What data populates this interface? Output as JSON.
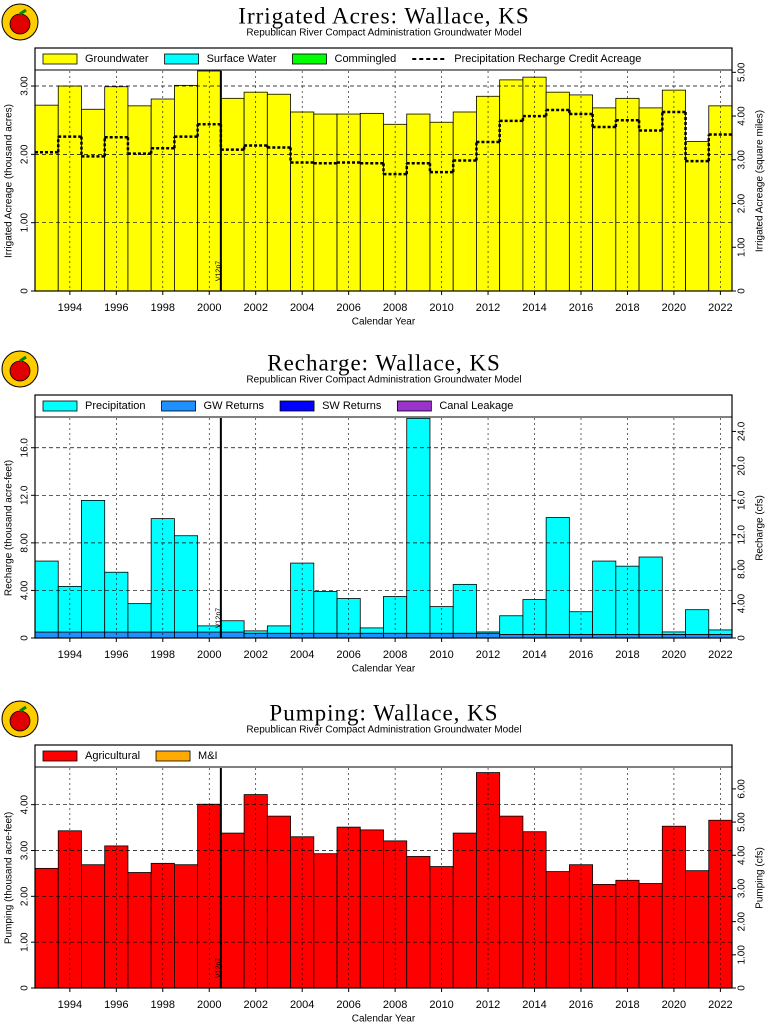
{
  "chart_data": [
    {
      "type": "bar",
      "stacked": true,
      "title": "Irrigated Acres: Wallace, KS",
      "subtitle": "Republican River Compact Administration Groundwater Model",
      "x_label": "Calendar Year",
      "y_label": "Irrigated Acreage (thousand acres)",
      "y2_label": "Irrigated Acreage (square miles)",
      "x": [
        1993,
        1994,
        1995,
        1996,
        1997,
        1998,
        1999,
        2000,
        2001,
        2002,
        2003,
        2004,
        2005,
        2006,
        2007,
        2008,
        2009,
        2010,
        2011,
        2012,
        2013,
        2014,
        2015,
        2016,
        2017,
        2018,
        2019,
        2020,
        2021,
        2022
      ],
      "xlim": [
        1992.5,
        2022.5
      ],
      "xticks": [
        1994,
        1996,
        1998,
        2000,
        2002,
        2004,
        2006,
        2008,
        2010,
        2012,
        2014,
        2016,
        2018,
        2020,
        2022
      ],
      "ylim": [
        0,
        3.22
      ],
      "yticks": [
        0,
        {
          "value": 1,
          "label": "1.00"
        },
        {
          "value": 2,
          "label": "2.00"
        },
        {
          "value": 3,
          "label": "3.00"
        }
      ],
      "y2lim": [
        0,
        5.03
      ],
      "y2ticks": [
        0,
        {
          "value": 1,
          "label": "1.00"
        },
        {
          "value": 2,
          "label": "2.00"
        },
        {
          "value": 3,
          "label": "3.00"
        },
        {
          "value": 4,
          "label": "4.00"
        },
        {
          "value": 5,
          "label": "5.00"
        }
      ],
      "grid": true,
      "series": [
        {
          "name": "Groundwater",
          "color": "#ffff00",
          "values": [
            2.72,
            3.0,
            2.66,
            2.99,
            2.71,
            2.81,
            3.01,
            3.22,
            2.82,
            2.91,
            2.88,
            2.62,
            2.59,
            2.59,
            2.6,
            2.44,
            2.59,
            2.47,
            2.62,
            2.85,
            3.09,
            3.13,
            2.91,
            2.87,
            2.68,
            2.82,
            2.68,
            2.94,
            2.19,
            2.71
          ]
        },
        {
          "name": "Surface Water",
          "color": "#00ffff",
          "values": [
            0,
            0,
            0,
            0,
            0,
            0,
            0,
            0,
            0,
            0,
            0,
            0,
            0,
            0,
            0,
            0,
            0,
            0,
            0,
            0,
            0,
            0,
            0,
            0,
            0,
            0,
            0,
            0,
            0,
            0
          ]
        },
        {
          "name": "Commingled",
          "color": "#00ff00",
          "values": [
            0,
            0,
            0,
            0,
            0,
            0,
            0,
            0,
            0,
            0,
            0,
            0,
            0,
            0,
            0,
            0,
            0,
            0,
            0,
            0,
            0,
            0,
            0,
            0,
            0,
            0,
            0,
            0,
            0,
            0
          ]
        },
        {
          "name": "Precipitation Recharge Credit Acreage",
          "type": "line",
          "color": "#000000",
          "values": [
            2.03,
            2.26,
            1.97,
            2.25,
            2.01,
            2.09,
            2.26,
            2.44,
            2.07,
            2.13,
            2.1,
            1.88,
            1.87,
            1.88,
            1.87,
            1.71,
            1.87,
            1.74,
            1.91,
            2.18,
            2.49,
            2.56,
            2.65,
            2.59,
            2.4,
            2.5,
            2.35,
            2.62,
            1.9,
            2.29
          ]
        }
      ],
      "annotations": [
        {
          "text": "V12p7",
          "x": 2000.5
        }
      ]
    },
    {
      "type": "bar",
      "stacked": true,
      "title": "Recharge: Wallace, KS",
      "subtitle": "Republican River Compact Administration Groundwater Model",
      "x_label": "Calendar Year",
      "y_label": "Recharge (thousand acre-feet)",
      "y2_label": "Recharge (cfs)",
      "x": [
        1993,
        1994,
        1995,
        1996,
        1997,
        1998,
        1999,
        2000,
        2001,
        2002,
        2003,
        2004,
        2005,
        2006,
        2007,
        2008,
        2009,
        2010,
        2011,
        2012,
        2013,
        2014,
        2015,
        2016,
        2017,
        2018,
        2019,
        2020,
        2021,
        2022
      ],
      "xlim": [
        1992.5,
        2022.5
      ],
      "xticks": [
        1994,
        1996,
        1998,
        2000,
        2002,
        2004,
        2006,
        2008,
        2010,
        2012,
        2014,
        2016,
        2018,
        2020,
        2022
      ],
      "ylim": [
        0,
        18.5
      ],
      "yticks": [
        0,
        {
          "value": 4,
          "label": "4.00"
        },
        {
          "value": 8,
          "label": "8.00"
        },
        {
          "value": 12,
          "label": "12.0"
        },
        {
          "value": 16,
          "label": "16.0"
        }
      ],
      "y2lim": [
        0,
        25.56
      ],
      "y2ticks": [
        0,
        {
          "value": 4,
          "label": "4.00"
        },
        {
          "value": 8,
          "label": "8.00"
        },
        {
          "value": 12,
          "label": "12.0"
        },
        {
          "value": 16,
          "label": "16.0"
        },
        {
          "value": 20,
          "label": "20.0"
        },
        {
          "value": 24,
          "label": "24.0"
        }
      ],
      "grid": true,
      "series": [
        {
          "name": "GW Returns",
          "color": "#1e90ff",
          "values": [
            0.5,
            0.5,
            0.5,
            0.5,
            0.5,
            0.5,
            0.5,
            0.5,
            0.5,
            0.4,
            0.4,
            0.4,
            0.4,
            0.4,
            0.4,
            0.4,
            0.4,
            0.4,
            0.4,
            0.4,
            0.3,
            0.3,
            0.3,
            0.3,
            0.3,
            0.3,
            0.3,
            0.3,
            0.3,
            0.3
          ]
        },
        {
          "name": "SW Returns",
          "color": "#0000ff",
          "values": [
            0,
            0,
            0,
            0,
            0,
            0,
            0,
            0,
            0,
            0,
            0,
            0,
            0,
            0,
            0,
            0,
            0,
            0,
            0,
            0,
            0,
            0,
            0,
            0,
            0,
            0,
            0,
            0,
            0,
            0
          ]
        },
        {
          "name": "Canal Leakage",
          "color": "#9933cc",
          "values": [
            0,
            0,
            0,
            0,
            0,
            0,
            0,
            0,
            0,
            0,
            0,
            0,
            0,
            0,
            0,
            0,
            0,
            0,
            0,
            0,
            0,
            0,
            0,
            0,
            0,
            0,
            0,
            0,
            0,
            0
          ]
        },
        {
          "name": "Precipitation",
          "color": "#00ffff",
          "values": [
            5.97,
            3.84,
            11.07,
            5.03,
            2.39,
            9.54,
            8.1,
            0.52,
            0.95,
            0.2,
            0.62,
            5.9,
            3.51,
            2.92,
            0.45,
            3.09,
            18.07,
            2.24,
            4.11,
            0.11,
            1.57,
            2.93,
            9.83,
            1.91,
            6.17,
            5.74,
            6.51,
            0.21,
            2.08,
            0.38
          ]
        }
      ],
      "legend_order": [
        "Precipitation",
        "GW Returns",
        "SW Returns",
        "Canal Leakage"
      ],
      "annotations": [
        {
          "text": "V12p7",
          "x": 2000.5
        }
      ]
    },
    {
      "type": "bar",
      "stacked": true,
      "title": "Pumping: Wallace, KS",
      "subtitle": "Republican River Compact Administration Groundwater Model",
      "x_label": "Calendar Year",
      "y_label": "Pumping (thousand acre-feet)",
      "y2_label": "Pumping (cfs)",
      "x": [
        1993,
        1994,
        1995,
        1996,
        1997,
        1998,
        1999,
        2000,
        2001,
        2002,
        2003,
        2004,
        2005,
        2006,
        2007,
        2008,
        2009,
        2010,
        2011,
        2012,
        2013,
        2014,
        2015,
        2016,
        2017,
        2018,
        2019,
        2020,
        2021,
        2022
      ],
      "xlim": [
        1992.5,
        2022.5
      ],
      "xticks": [
        1994,
        1996,
        1998,
        2000,
        2002,
        2004,
        2006,
        2008,
        2010,
        2012,
        2014,
        2016,
        2018,
        2020,
        2022
      ],
      "ylim": [
        0,
        4.8
      ],
      "yticks": [
        0,
        {
          "value": 1,
          "label": "1.00"
        },
        {
          "value": 2,
          "label": "2.00"
        },
        {
          "value": 3,
          "label": "3.00"
        },
        {
          "value": 4,
          "label": "4.00"
        }
      ],
      "y2lim": [
        0,
        6.63
      ],
      "y2ticks": [
        0,
        {
          "value": 1,
          "label": "1.00"
        },
        {
          "value": 2,
          "label": "2.00"
        },
        {
          "value": 3,
          "label": "3.00"
        },
        {
          "value": 4,
          "label": "4.00"
        },
        {
          "value": 5,
          "label": "5.00"
        },
        {
          "value": 6,
          "label": "6.00"
        }
      ],
      "grid": true,
      "series": [
        {
          "name": "Agricultural",
          "color": "#ff0000",
          "values": [
            2.61,
            3.43,
            2.69,
            3.1,
            2.52,
            2.72,
            2.69,
            4.01,
            3.38,
            4.22,
            3.75,
            3.3,
            2.93,
            3.51,
            3.45,
            3.21,
            2.87,
            2.65,
            3.38,
            4.7,
            3.75,
            3.41,
            2.54,
            2.69,
            2.26,
            2.35,
            2.28,
            3.53,
            2.56,
            3.66
          ]
        },
        {
          "name": "M&I",
          "color": "#ffaa00",
          "values": [
            0,
            0,
            0,
            0,
            0,
            0,
            0,
            0,
            0,
            0,
            0,
            0,
            0,
            0,
            0,
            0,
            0,
            0,
            0,
            0,
            0,
            0,
            0,
            0,
            0,
            0,
            0,
            0,
            0,
            0
          ]
        }
      ],
      "annotations": [
        {
          "text": "V12p7",
          "x": 2000.5
        }
      ]
    }
  ]
}
